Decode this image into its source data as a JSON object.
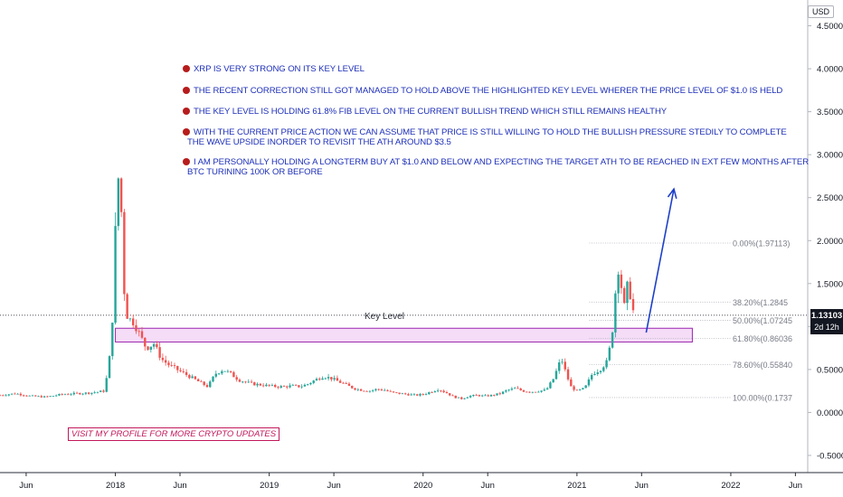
{
  "currency": "USD",
  "notes": [
    "XRP IS VERY STRONG ON ITS KEY LEVEL",
    "THE RECENT CORRECTION STILL GOT MANAGED TO HOLD ABOVE THE HIGHLIGHTED KEY LEVEL WHERER THE PRICE LEVEL OF $1.0 IS HELD",
    "THE KEY LEVEL IS HOLDING 61.8% FIB LEVEL ON THE CURRENT BULLISH TREND WHICH STILL REMAINS HEALTHY",
    "WITH THE CURRENT PRICE ACTION WE CAN ASSUME THAT PRICE IS STILL WILLING TO HOLD THE BULLISH PRESSURE STEDILY TO COMPLETE",
    "THE WAVE UPSIDE INORDER TO REVISIT THE ATH AROUND $3.5",
    "I AM PERSONALLY HOLDING A LONGTERM BUY AT $1.0 AND BELOW AND EXPECTING THE TARGET ATH TO BE REACHED IN EXT FEW MONTHS AFTER",
    "BTC TURINING 100K OR BEFORE"
  ],
  "promo": "VISIT MY PROFILE FOR MORE CRYPTO UPDATES",
  "key_level_label": "Key Level",
  "last_price": "1.13103",
  "countdown": "2d 12h",
  "chart_data": {
    "type": "candlestick",
    "y_axis": {
      "min": -0.7,
      "max": 4.8,
      "ticks": [
        "-0.50000",
        "0.00000",
        "0.50000",
        "1.00000",
        "1.50000",
        "2.00000",
        "2.50000",
        "3.00000",
        "3.50000",
        "4.00000",
        "4.50000"
      ],
      "tick_values": [
        -0.5,
        0,
        0.5,
        1,
        1.5,
        2,
        2.5,
        3,
        3.5,
        4,
        4.5
      ]
    },
    "x_axis": {
      "min": 2017.25,
      "max": 2022.5,
      "ticks": [
        {
          "label": "Jun",
          "value": 2017.42
        },
        {
          "label": "2018",
          "value": 2018.0
        },
        {
          "label": "Jun",
          "value": 2018.42
        },
        {
          "label": "2019",
          "value": 2019.0
        },
        {
          "label": "Jun",
          "value": 2019.42
        },
        {
          "label": "2020",
          "value": 2020.0
        },
        {
          "label": "Jun",
          "value": 2020.42
        },
        {
          "label": "2021",
          "value": 2021.0
        },
        {
          "label": "Jun",
          "value": 2021.42
        },
        {
          "label": "2022",
          "value": 2022.0
        },
        {
          "label": "Jun",
          "value": 2022.42
        }
      ]
    },
    "price_path": [
      [
        2017.25,
        0.2
      ],
      [
        2017.35,
        0.22
      ],
      [
        2017.45,
        0.19
      ],
      [
        2017.55,
        0.18
      ],
      [
        2017.65,
        0.21
      ],
      [
        2017.75,
        0.22
      ],
      [
        2017.85,
        0.23
      ],
      [
        2017.93,
        0.25
      ],
      [
        2017.96,
        0.6
      ],
      [
        2017.98,
        1.05
      ],
      [
        2018.0,
        2.1
      ],
      [
        2018.02,
        2.75
      ],
      [
        2018.04,
        2.3
      ],
      [
        2018.06,
        1.3
      ],
      [
        2018.08,
        1.1
      ],
      [
        2018.12,
        1.05
      ],
      [
        2018.16,
        0.9
      ],
      [
        2018.2,
        0.75
      ],
      [
        2018.25,
        0.8
      ],
      [
        2018.3,
        0.62
      ],
      [
        2018.35,
        0.55
      ],
      [
        2018.4,
        0.5
      ],
      [
        2018.45,
        0.45
      ],
      [
        2018.5,
        0.4
      ],
      [
        2018.55,
        0.35
      ],
      [
        2018.6,
        0.3
      ],
      [
        2018.65,
        0.45
      ],
      [
        2018.7,
        0.5
      ],
      [
        2018.75,
        0.45
      ],
      [
        2018.8,
        0.38
      ],
      [
        2018.85,
        0.35
      ],
      [
        2018.9,
        0.33
      ],
      [
        2018.95,
        0.32
      ],
      [
        2019.0,
        0.31
      ],
      [
        2019.05,
        0.3
      ],
      [
        2019.1,
        0.3
      ],
      [
        2019.15,
        0.31
      ],
      [
        2019.2,
        0.3
      ],
      [
        2019.25,
        0.33
      ],
      [
        2019.3,
        0.38
      ],
      [
        2019.35,
        0.42
      ],
      [
        2019.4,
        0.4
      ],
      [
        2019.45,
        0.36
      ],
      [
        2019.5,
        0.32
      ],
      [
        2019.55,
        0.28
      ],
      [
        2019.6,
        0.26
      ],
      [
        2019.65,
        0.25
      ],
      [
        2019.7,
        0.27
      ],
      [
        2019.75,
        0.26
      ],
      [
        2019.8,
        0.23
      ],
      [
        2019.85,
        0.22
      ],
      [
        2019.9,
        0.21
      ],
      [
        2019.95,
        0.2
      ],
      [
        2020.0,
        0.21
      ],
      [
        2020.05,
        0.24
      ],
      [
        2020.1,
        0.27
      ],
      [
        2020.15,
        0.23
      ],
      [
        2020.2,
        0.18
      ],
      [
        2020.25,
        0.16
      ],
      [
        2020.3,
        0.19
      ],
      [
        2020.35,
        0.2
      ],
      [
        2020.4,
        0.19
      ],
      [
        2020.45,
        0.2
      ],
      [
        2020.5,
        0.22
      ],
      [
        2020.55,
        0.26
      ],
      [
        2020.6,
        0.28
      ],
      [
        2020.65,
        0.25
      ],
      [
        2020.7,
        0.24
      ],
      [
        2020.75,
        0.25
      ],
      [
        2020.8,
        0.26
      ],
      [
        2020.85,
        0.4
      ],
      [
        2020.88,
        0.55
      ],
      [
        2020.9,
        0.62
      ],
      [
        2020.93,
        0.45
      ],
      [
        2020.96,
        0.3
      ],
      [
        2021.0,
        0.25
      ],
      [
        2021.05,
        0.28
      ],
      [
        2021.1,
        0.45
      ],
      [
        2021.15,
        0.5
      ],
      [
        2021.2,
        0.6
      ],
      [
        2021.23,
        0.95
      ],
      [
        2021.25,
        1.4
      ],
      [
        2021.27,
        1.7
      ],
      [
        2021.29,
        1.45
      ],
      [
        2021.31,
        1.2
      ],
      [
        2021.33,
        1.5
      ],
      [
        2021.35,
        1.35
      ],
      [
        2021.37,
        1.13
      ]
    ],
    "fib_levels": [
      {
        "label": "0.00%(1.97113)",
        "value": 1.97113
      },
      {
        "label": "38.20%(1.2845",
        "value": 1.2845
      },
      {
        "label": "50.00%(1.07245",
        "value": 1.07245
      },
      {
        "label": "61.80%(0.86036",
        "value": 0.86036
      },
      {
        "label": "78.60%(0.55840",
        "value": 0.5584
      },
      {
        "label": "100.00%(0.1737",
        "value": 0.1737
      }
    ],
    "key_zone": {
      "low": 0.82,
      "high": 0.98,
      "x_start": 2018.0,
      "x_end": 2021.75
    },
    "arrow": {
      "from": [
        2021.45,
        0.93
      ],
      "to": [
        2021.63,
        2.6
      ]
    },
    "last_price_value": 1.13103,
    "colors": {
      "up": "#26a69a",
      "down": "#ef5350",
      "fib": "#b2b5be",
      "zone_fill": "#efc9f2",
      "zone_border": "#9c27b0",
      "arrow": "#1e40c8"
    }
  }
}
